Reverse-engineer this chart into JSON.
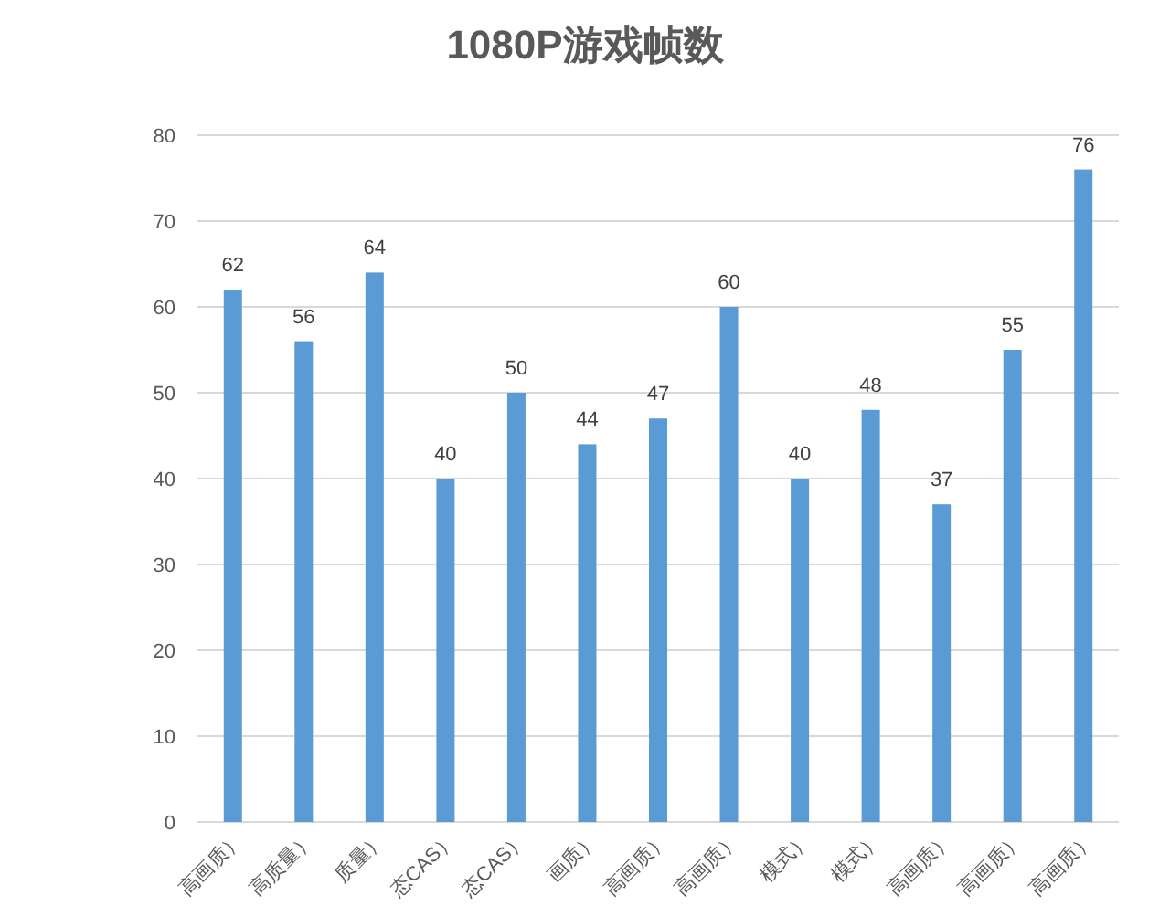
{
  "chart_data": {
    "type": "bar",
    "title": "1080P游戏帧数",
    "categories": [
      "高画质）",
      "高质量）",
      "质量）",
      "态CAS）",
      "态CAS）",
      "画质）",
      "高画质）",
      "高画质）",
      "模式）",
      "模式）",
      "高画质）",
      "高画质）",
      "高画质）"
    ],
    "values": [
      62,
      56,
      64,
      40,
      50,
      44,
      47,
      60,
      40,
      48,
      37,
      55,
      76
    ],
    "color": "#5b9bd5",
    "ylim": [
      0,
      80
    ],
    "yticks": [
      0,
      10,
      20,
      30,
      40,
      50,
      60,
      70,
      80
    ],
    "grid": "y",
    "data_labels": true
  }
}
